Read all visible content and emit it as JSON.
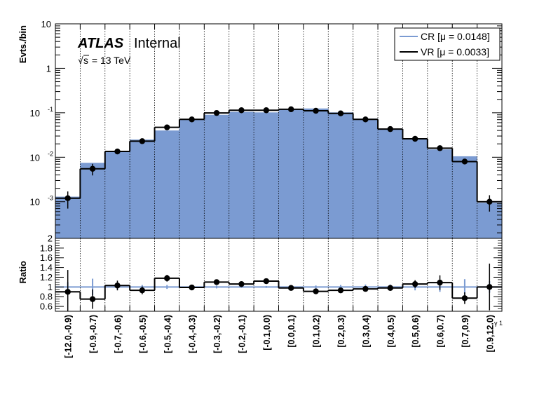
{
  "chart_data": [
    {
      "type": "bar",
      "panel": "main",
      "ylabel": "Evts./bin",
      "yscale": "log",
      "ylim": [
        0.00015,
        10
      ],
      "y_ticks": [
        {
          "v": 0.001,
          "m": "10",
          "e": "-3"
        },
        {
          "v": 0.01,
          "m": "10",
          "e": "-2"
        },
        {
          "v": 0.1,
          "m": "10",
          "e": "-1"
        },
        {
          "v": 1,
          "m": "1",
          "e": ""
        },
        {
          "v": 10,
          "m": "10",
          "e": ""
        }
      ],
      "grid_x": true,
      "legend_position": "top-right",
      "categories": [
        "[-12.0,-0.9)",
        "[-0.9,-0.7)",
        "[-0.7,-0.6)",
        "[-0.6,-0.5)",
        "[-0.5,-0.4)",
        "[-0.4,-0.3)",
        "[-0.3,-0.2)",
        "[-0.2,-0.1)",
        "[-0.1,0.0)",
        "[0.0,0.1)",
        "[0.1,0.2)",
        "[0.2,0.3)",
        "[0.3,0.4)",
        "[0.4,0.5)",
        "[0.5,0.6)",
        "[0.6,0.7)",
        "[0.7,0.9)",
        "[0.9,12.0)"
      ],
      "series": [
        {
          "name": "CR [μ = 0.0148]",
          "color": "#7b9bd2",
          "style": "filled",
          "values": [
            0.0013,
            0.0075,
            0.014,
            0.025,
            0.04,
            0.072,
            0.09,
            0.105,
            0.102,
            0.118,
            0.125,
            0.102,
            0.074,
            0.044,
            0.025,
            0.015,
            0.0105,
            0.00095
          ]
        },
        {
          "name": "VR [μ = 0.0033]",
          "color": "#000000",
          "style": "step-points",
          "values": [
            0.0012,
            0.0055,
            0.0135,
            0.023,
            0.047,
            0.071,
            0.099,
            0.114,
            0.114,
            0.12,
            0.111,
            0.097,
            0.071,
            0.043,
            0.026,
            0.016,
            0.008,
            0.001
          ],
          "errors": [
            0.0005,
            0.0016,
            0.0015,
            0.002,
            0.004,
            0.005,
            0.006,
            0.006,
            0.006,
            0.007,
            0.006,
            0.006,
            0.005,
            0.004,
            0.002,
            0.0015,
            0.001,
            0.0004
          ]
        }
      ]
    },
    {
      "type": "line",
      "panel": "ratio",
      "ylabel": "Ratio",
      "ylim": [
        0.5,
        2.0
      ],
      "y_ticks": [
        0.6,
        0.8,
        1,
        1.2,
        1.4,
        1.6,
        1.8,
        2
      ],
      "reference_line": 1,
      "categories_ref": "same as main",
      "x_axis_tag": "γ 1",
      "cr_errors": [
        0.1,
        0.17,
        0.05,
        0.04,
        0.04,
        0.03,
        0.03,
        0.02,
        0.02,
        0.02,
        0.03,
        0.04,
        0.05,
        0.05,
        0.07,
        0.1,
        0.16,
        0.12
      ],
      "values": [
        0.9,
        0.75,
        1.03,
        0.93,
        1.18,
        0.99,
        1.1,
        1.06,
        1.12,
        0.98,
        0.91,
        0.93,
        0.96,
        0.98,
        1.06,
        1.09,
        0.77,
        1.0
      ],
      "errors": [
        0.45,
        0.2,
        0.1,
        0.08,
        0.07,
        0.05,
        0.05,
        0.05,
        0.05,
        0.05,
        0.05,
        0.05,
        0.05,
        0.06,
        0.08,
        0.15,
        0.12,
        0.48
      ]
    }
  ],
  "annotation": {
    "atlas": "ATLAS",
    "internal": "Internal",
    "energy_sqrt": "√",
    "energy_s": "s",
    "energy_rest": " = 13 TeV"
  }
}
